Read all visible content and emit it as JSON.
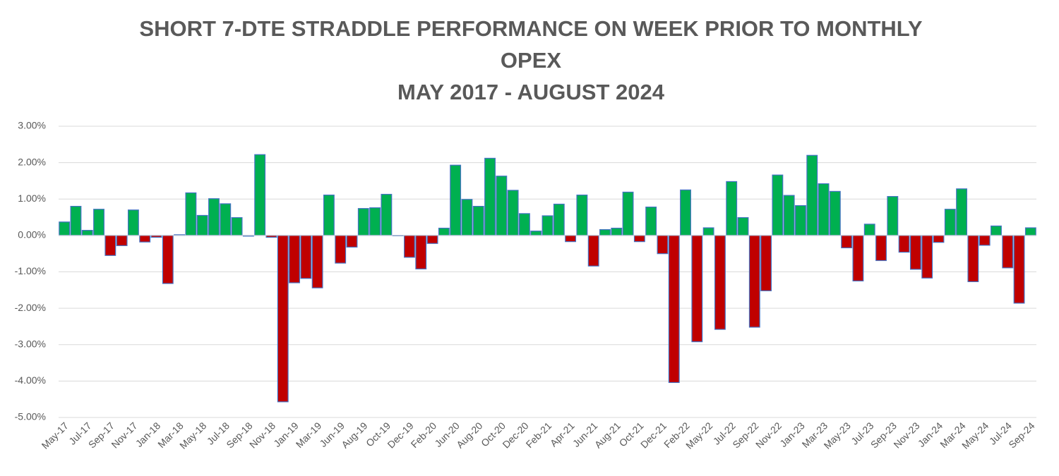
{
  "chart_data": {
    "type": "bar",
    "title": [
      "SHORT 7-DTE STRADDLE PERFORMANCE ON WEEK PRIOR TO MONTHLY",
      "OPEX",
      "MAY 2017 - AUGUST 2024"
    ],
    "categories": [
      "May-17",
      null,
      "Jul-17",
      null,
      "Sep-17",
      null,
      "Nov-17",
      null,
      "Jan-18",
      null,
      "Mar-18",
      null,
      "May-18",
      null,
      "Jul-18",
      null,
      "Sep-18",
      null,
      "Nov-18",
      null,
      "Jan-19",
      null,
      "Mar-19",
      null,
      "Jun-19",
      null,
      "Aug-19",
      null,
      "Oct-19",
      null,
      "Dec-19",
      null,
      "Feb-20",
      null,
      "Jun-20",
      null,
      "Aug-20",
      null,
      "Oct-20",
      null,
      "Dec-20",
      null,
      "Feb-21",
      null,
      "Apr-21",
      null,
      "Jun-21",
      null,
      "Aug-21",
      null,
      "Oct-21",
      null,
      "Dec-21",
      null,
      "Feb-22",
      null,
      "May-22",
      null,
      "Jul-22",
      null,
      "Sep-22",
      null,
      "Nov-22",
      null,
      "Jan-23",
      null,
      "Mar-23",
      null,
      "May-23",
      null,
      "Jul-23",
      null,
      "Sep-23",
      null,
      "Nov-23",
      null,
      "Jan-24",
      null,
      "Mar-24",
      null,
      "May-24",
      null,
      "Jul-24",
      null,
      "Sep-24"
    ],
    "values": [
      0.37,
      0.8,
      0.14,
      0.72,
      -0.55,
      -0.28,
      0.7,
      -0.18,
      -0.05,
      -1.32,
      0.02,
      1.17,
      0.55,
      1.01,
      0.87,
      0.49,
      -0.02,
      2.22,
      -0.05,
      -4.57,
      -1.3,
      -1.18,
      -1.44,
      1.11,
      -0.76,
      -0.32,
      0.74,
      0.76,
      1.13,
      -0.01,
      -0.6,
      -0.92,
      -0.22,
      0.2,
      1.93,
      0.99,
      0.8,
      2.12,
      1.63,
      1.24,
      0.6,
      0.12,
      0.54,
      0.86,
      -0.17,
      1.11,
      -0.84,
      0.16,
      0.2,
      1.19,
      -0.17,
      0.78,
      -0.5,
      -4.04,
      1.25,
      -2.92,
      0.21,
      -2.58,
      1.48,
      0.49,
      -2.52,
      -1.52,
      1.66,
      1.1,
      0.82,
      2.2,
      1.42,
      1.21,
      -0.34,
      -1.25,
      0.31,
      -0.69,
      1.07,
      -0.46,
      -0.93,
      -1.17,
      -0.19,
      0.72,
      1.28,
      -1.27,
      -0.27,
      0.26,
      -0.89,
      -1.86,
      0.21
    ],
    "positive_color": "#00b050",
    "negative_color": "#c00000",
    "edge_color": "#4472c4",
    "ylim": [
      -5,
      3
    ],
    "yticks": [
      {
        "value": -5,
        "label": "-5.00%"
      },
      {
        "value": -4,
        "label": "-4.00%"
      },
      {
        "value": -3,
        "label": "-3.00%"
      },
      {
        "value": -2,
        "label": "-2.00%"
      },
      {
        "value": -1,
        "label": "-1.00%"
      },
      {
        "value": 0,
        "label": "0.00%"
      },
      {
        "value": 1,
        "label": "1.00%"
      },
      {
        "value": 2,
        "label": "2.00%"
      },
      {
        "value": 3,
        "label": "3.00%"
      }
    ],
    "grid": true
  }
}
